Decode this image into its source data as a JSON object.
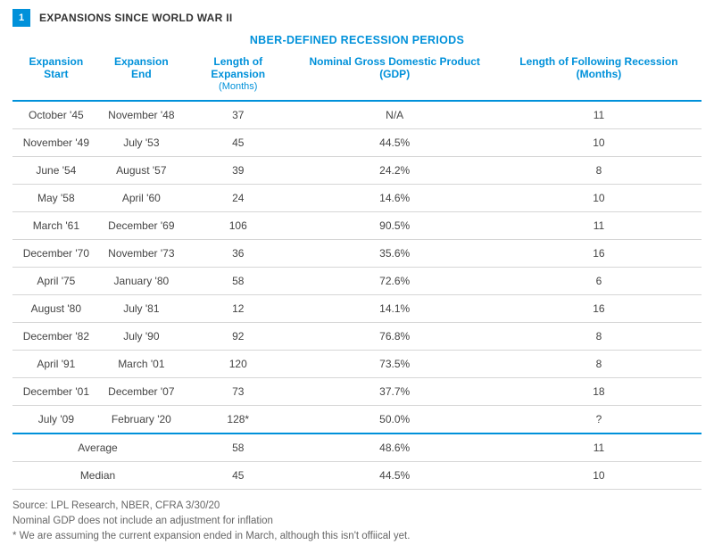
{
  "badge_number": "1",
  "title": "EXPANSIONS SINCE WORLD WAR II",
  "subtitle": "NBER-DEFINED RECESSION PERIODS",
  "columns": [
    {
      "main": "Expansion Start",
      "sub": ""
    },
    {
      "main": "Expansion End",
      "sub": ""
    },
    {
      "main": "Length of Expansion",
      "sub": "(Months)"
    },
    {
      "main": "Nominal Gross Domestic Product (GDP)",
      "sub": ""
    },
    {
      "main": "Length of Following Recession (Months)",
      "sub": ""
    }
  ],
  "rows": [
    [
      "October '45",
      "November '48",
      "37",
      "N/A",
      "11"
    ],
    [
      "November '49",
      "July '53",
      "45",
      "44.5%",
      "10"
    ],
    [
      "June '54",
      "August '57",
      "39",
      "24.2%",
      "8"
    ],
    [
      "May '58",
      "April '60",
      "24",
      "14.6%",
      "10"
    ],
    [
      "March '61",
      "December '69",
      "106",
      "90.5%",
      "11"
    ],
    [
      "December '70",
      "November '73",
      "36",
      "35.6%",
      "16"
    ],
    [
      "April '75",
      "January '80",
      "58",
      "72.6%",
      "6"
    ],
    [
      "August '80",
      "July '81",
      "12",
      "14.1%",
      "16"
    ],
    [
      "December '82",
      "July '90",
      "92",
      "76.8%",
      "8"
    ],
    [
      "April '91",
      "March '01",
      "120",
      "73.5%",
      "8"
    ],
    [
      "December '01",
      "December '07",
      "73",
      "37.7%",
      "18"
    ],
    [
      "July '09",
      "February '20",
      "128*",
      "50.0%",
      "?"
    ]
  ],
  "summary": [
    {
      "label": "Average",
      "length": "58",
      "gdp": "48.6%",
      "recession": "11"
    },
    {
      "label": "Median",
      "length": "45",
      "gdp": "44.5%",
      "recession": "10"
    }
  ],
  "footnotes": [
    "Source: LPL Research, NBER, CFRA 3/30/20",
    "Nominal GDP does not include an adjustment for inflation",
    "* We are assuming the current expansion ended in March, although this isn't offiical yet."
  ],
  "colors": {
    "accent": "#0091da",
    "text": "#444444",
    "border": "#d6d6d6",
    "foot": "#666666"
  }
}
